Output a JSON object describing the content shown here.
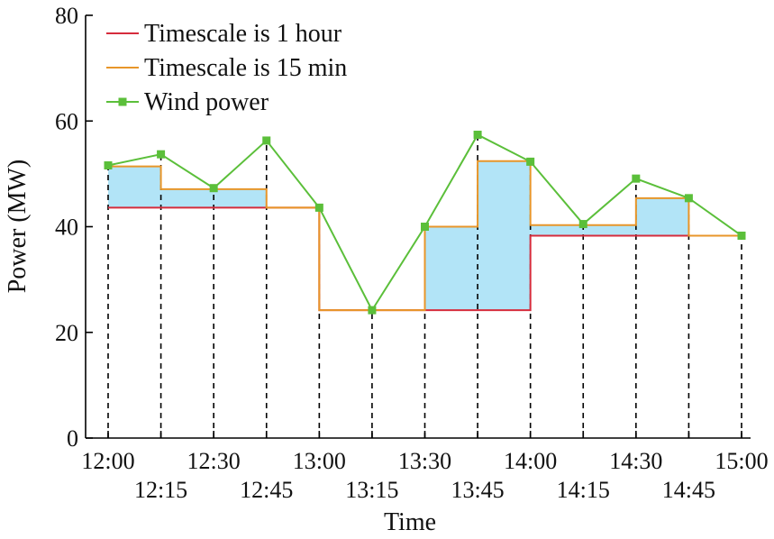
{
  "chart_data": {
    "type": "line",
    "xlabel": "Time",
    "ylabel": "Power (MW)",
    "ylim": [
      0,
      80
    ],
    "yticks": [
      0,
      20,
      40,
      60,
      80
    ],
    "xlim": [
      "12:00",
      "15:00"
    ],
    "x": [
      "12:00",
      "12:15",
      "12:30",
      "12:45",
      "13:00",
      "13:15",
      "13:30",
      "13:45",
      "14:00",
      "14:15",
      "14:30",
      "14:45",
      "15:00"
    ],
    "xticks_upper": [
      "12:00",
      "12:30",
      "13:00",
      "13:30",
      "14:00",
      "14:30",
      "15:00"
    ],
    "xticks_lower": [
      "12:15",
      "12:45",
      "13:15",
      "13:45",
      "14:15",
      "14:45"
    ],
    "grid": false,
    "legend_position": "top-left",
    "series": [
      {
        "name": "Timescale is 1 hour",
        "style": "step",
        "color": "#d62c3c",
        "values": [
          43.6,
          43.6,
          43.6,
          43.6,
          24.2,
          24.2,
          24.2,
          24.2,
          38.3,
          38.3,
          38.3,
          38.3,
          38.3
        ]
      },
      {
        "name": "Timescale is 15 min",
        "style": "step",
        "color": "#e8962a",
        "values": [
          51.4,
          47.1,
          47.1,
          43.6,
          24.2,
          24.2,
          40.0,
          52.4,
          40.3,
          40.3,
          45.4,
          38.3,
          38.3
        ]
      },
      {
        "name": "Wind power",
        "style": "line-marker",
        "color": "#5bbf3a",
        "values": [
          51.6,
          53.7,
          47.3,
          56.3,
          43.6,
          24.2,
          40.0,
          57.4,
          52.3,
          40.5,
          49.1,
          45.4,
          38.3
        ]
      }
    ],
    "fill_color": "#b2e4f7",
    "fill_between": [
      "Timescale is 1 hour",
      "Timescale is 15 min"
    ]
  }
}
